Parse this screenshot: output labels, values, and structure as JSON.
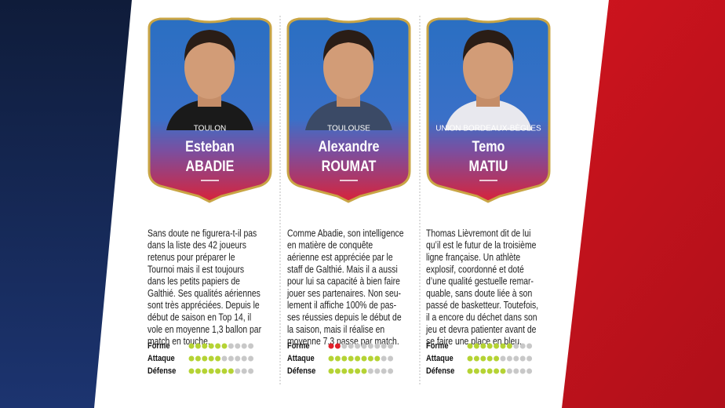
{
  "rating_labels": [
    "Forme",
    "Attaque",
    "Défense"
  ],
  "rating_max": 10,
  "players": [
    {
      "club": "TOULON",
      "first_name": "Esteban",
      "last_name": "ABADIE",
      "text": [
        "Sans doute ne figurera-t-il pas",
        "dans la liste des 42 joueurs",
        "retenus pour préparer le",
        "Tournoi mais il est toujours",
        "dans les petits papiers de",
        "Galthié. Ses qualités aériennes",
        "sont très appréciées. Depuis le",
        "début de saison en Top 14, il",
        "vole en moyenne 1,3 ballon par",
        "match en touche."
      ],
      "ratings": [
        {
          "value": 6,
          "color": "#b5d334"
        },
        {
          "value": 5,
          "color": "#b5d334"
        },
        {
          "value": 7,
          "color": "#b5d334"
        }
      ]
    },
    {
      "club": "TOULOUSE",
      "first_name": "Alexandre",
      "last_name": "ROUMAT",
      "text": [
        "Comme Abadie, son intelligence",
        "en matière de conquête",
        "aérienne est appréciée par le",
        "staff de Galthié. Mais il a aussi",
        "pour lui sa capacité à bien faire",
        "jouer ses partenaires. Non seu-",
        "lement il affiche 100% de pas-",
        "ses réussies depuis le début de",
        "la saison, mais il réalise en",
        "moyenne 7.3 passe par match."
      ],
      "ratings": [
        {
          "value": 2,
          "color": "#e0202a"
        },
        {
          "value": 8,
          "color": "#b5d334"
        },
        {
          "value": 6,
          "color": "#b5d334"
        }
      ]
    },
    {
      "club": "UNION BORDEAUX-BÈGLES",
      "first_name": "Temo",
      "last_name": "MATIU",
      "text": [
        "Thomas Lièvremont dit de lui",
        "qu’il est le futur de la troisième",
        "ligne française. Un athlète",
        "explosif, coordonné et doté",
        "d’une qualité gestuelle remar-",
        "quable, sans doute liée à son",
        "passé de basketteur. Toutefois,",
        "il a encore du déchet dans son",
        "jeu et devra patienter avant de",
        "se faire une place en bleu."
      ],
      "ratings": [
        {
          "value": 7,
          "color": "#b5d334"
        },
        {
          "value": 5,
          "color": "#b5d334"
        },
        {
          "value": 6,
          "color": "#b5d334"
        }
      ]
    }
  ]
}
